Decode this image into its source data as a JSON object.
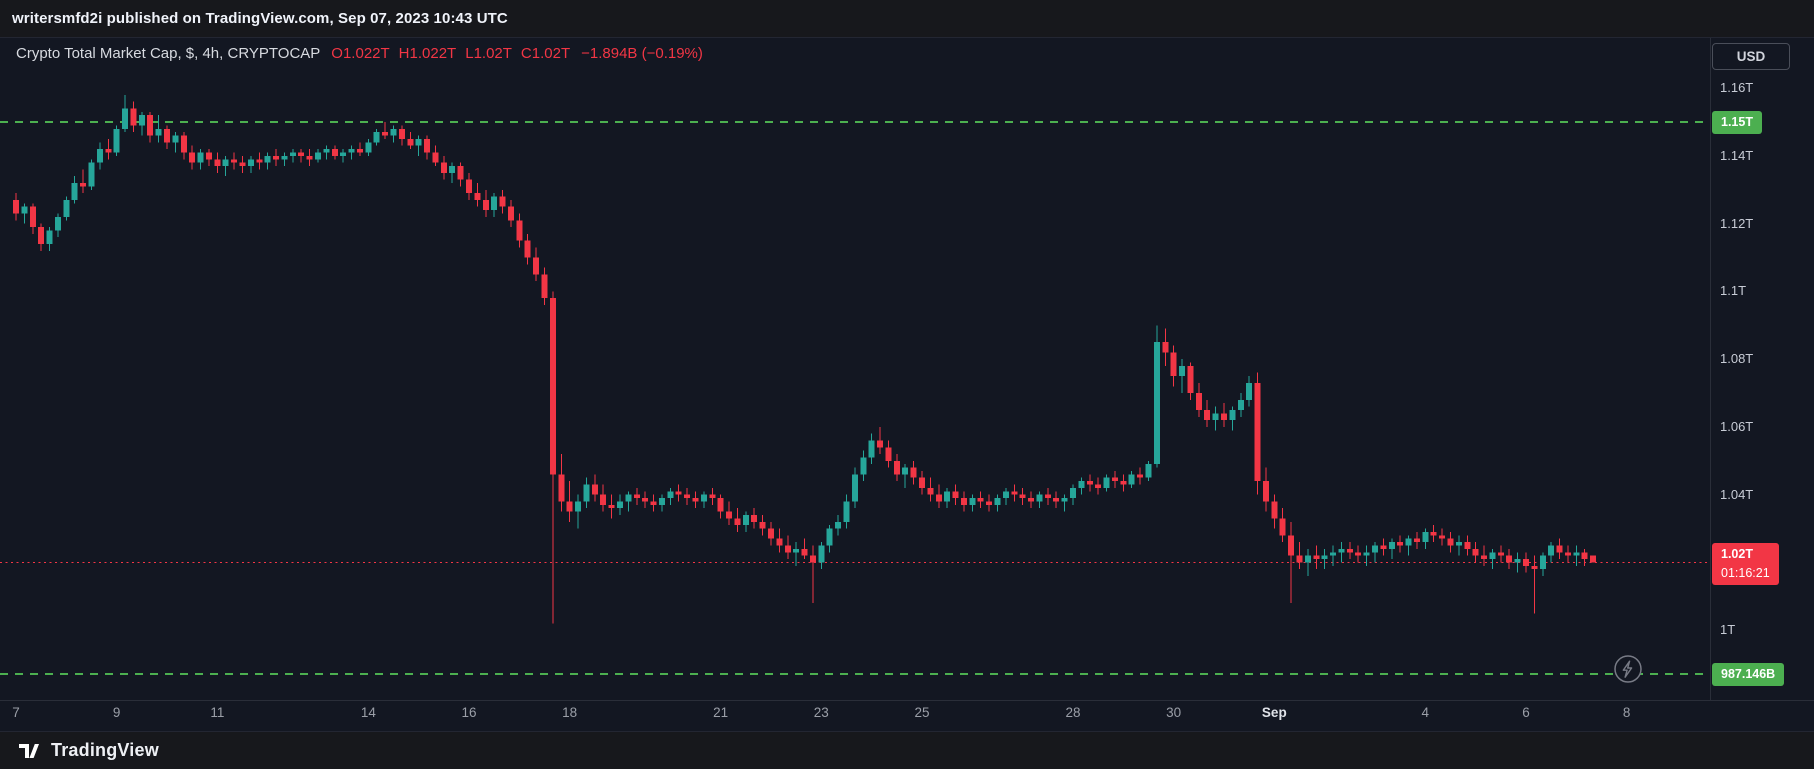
{
  "publish_bar": {
    "text": "writersmfd2i published on TradingView.com, Sep 07, 2023 10:43 UTC"
  },
  "legend": {
    "title": "Crypto Total Market Cap, $, 4h, CRYPTOCAP",
    "ohlc": [
      {
        "label": "O",
        "value": "1.022T"
      },
      {
        "label": "H",
        "value": "1.022T"
      },
      {
        "label": "L",
        "value": "1.02T"
      },
      {
        "label": "C",
        "value": "1.02T"
      }
    ],
    "change": "−1.894B (−0.19%)"
  },
  "price_scale": {
    "currency_button": "USD"
  },
  "footer": {
    "brand": "TradingView"
  },
  "colors": {
    "up": "#26a69a",
    "down": "#f23645",
    "level_green": "#4caf50",
    "last_price_red": "#f23645",
    "background": "#131722",
    "axis_text": "#c8ccd6"
  },
  "chart_data": {
    "type": "candlestick",
    "name": "Crypto Total Market Cap",
    "unit": "$",
    "exchange": "CRYPTOCAP",
    "interval": "4h",
    "currency": "USD",
    "start_time": "2023-08-07 00:00 UTC",
    "interval_hours": 4,
    "ylim_trillions": [
      0.9794,
      1.1745
    ],
    "y_ticks": [
      {
        "label": "1.16T",
        "price_trillions": 1.16
      },
      {
        "label": "1.14T",
        "price_trillions": 1.14
      },
      {
        "label": "1.12T",
        "price_trillions": 1.12
      },
      {
        "label": "1.1T",
        "price_trillions": 1.1
      },
      {
        "label": "1.08T",
        "price_trillions": 1.08
      },
      {
        "label": "1.06T",
        "price_trillions": 1.06
      },
      {
        "label": "1.04T",
        "price_trillions": 1.04
      },
      {
        "label": "1T",
        "price_trillions": 1.0
      }
    ],
    "x_ticks": [
      {
        "label": "7",
        "day_offset": 0
      },
      {
        "label": "9",
        "day_offset": 2
      },
      {
        "label": "11",
        "day_offset": 4
      },
      {
        "label": "14",
        "day_offset": 7
      },
      {
        "label": "16",
        "day_offset": 9
      },
      {
        "label": "18",
        "day_offset": 11
      },
      {
        "label": "21",
        "day_offset": 14
      },
      {
        "label": "23",
        "day_offset": 16
      },
      {
        "label": "25",
        "day_offset": 18
      },
      {
        "label": "28",
        "day_offset": 21
      },
      {
        "label": "30",
        "day_offset": 23
      },
      {
        "label": "Sep",
        "day_offset": 25,
        "major": true
      },
      {
        "label": "4",
        "day_offset": 28
      },
      {
        "label": "6",
        "day_offset": 30
      },
      {
        "label": "8",
        "day_offset": 32
      }
    ],
    "levels": [
      {
        "kind": "horizontal-line",
        "style": "dashed",
        "color": "#4caf50",
        "price_trillions": 1.15,
        "badge": "1.15T"
      },
      {
        "kind": "horizontal-line",
        "style": "dashed",
        "color": "#4caf50",
        "price_trillions": 0.987146,
        "badge": "987.146B"
      },
      {
        "kind": "last-price",
        "style": "dotted",
        "color": "#f23645",
        "price_trillions": 1.02,
        "badge": "1.02T",
        "countdown": "01:16:21"
      }
    ],
    "candles_ohlc_trillions": [
      [
        1.127,
        1.129,
        1.121,
        1.123
      ],
      [
        1.123,
        1.126,
        1.12,
        1.125
      ],
      [
        1.125,
        1.126,
        1.117,
        1.119
      ],
      [
        1.119,
        1.12,
        1.112,
        1.114
      ],
      [
        1.114,
        1.119,
        1.112,
        1.118
      ],
      [
        1.118,
        1.123,
        1.116,
        1.122
      ],
      [
        1.122,
        1.128,
        1.121,
        1.127
      ],
      [
        1.127,
        1.134,
        1.126,
        1.132
      ],
      [
        1.132,
        1.136,
        1.129,
        1.131
      ],
      [
        1.131,
        1.139,
        1.13,
        1.138
      ],
      [
        1.138,
        1.144,
        1.136,
        1.142
      ],
      [
        1.142,
        1.145,
        1.139,
        1.141
      ],
      [
        1.141,
        1.149,
        1.14,
        1.148
      ],
      [
        1.148,
        1.158,
        1.147,
        1.154
      ],
      [
        1.154,
        1.156,
        1.147,
        1.149
      ],
      [
        1.149,
        1.153,
        1.146,
        1.152
      ],
      [
        1.152,
        1.153,
        1.144,
        1.146
      ],
      [
        1.146,
        1.152,
        1.144,
        1.148
      ],
      [
        1.148,
        1.149,
        1.142,
        1.144
      ],
      [
        1.144,
        1.147,
        1.141,
        1.146
      ],
      [
        1.146,
        1.147,
        1.139,
        1.141
      ],
      [
        1.141,
        1.143,
        1.136,
        1.138
      ],
      [
        1.138,
        1.142,
        1.136,
        1.141
      ],
      [
        1.141,
        1.142,
        1.137,
        1.139
      ],
      [
        1.139,
        1.141,
        1.135,
        1.137
      ],
      [
        1.137,
        1.14,
        1.134,
        1.139
      ],
      [
        1.139,
        1.141,
        1.136,
        1.138
      ],
      [
        1.138,
        1.14,
        1.135,
        1.137
      ],
      [
        1.137,
        1.14,
        1.135,
        1.139
      ],
      [
        1.139,
        1.141,
        1.136,
        1.138
      ],
      [
        1.138,
        1.141,
        1.136,
        1.14
      ],
      [
        1.14,
        1.142,
        1.137,
        1.139
      ],
      [
        1.139,
        1.141,
        1.137,
        1.14
      ],
      [
        1.14,
        1.142,
        1.138,
        1.141
      ],
      [
        1.141,
        1.142,
        1.138,
        1.14
      ],
      [
        1.14,
        1.142,
        1.137,
        1.139
      ],
      [
        1.139,
        1.142,
        1.138,
        1.141
      ],
      [
        1.141,
        1.143,
        1.139,
        1.142
      ],
      [
        1.142,
        1.143,
        1.139,
        1.14
      ],
      [
        1.14,
        1.142,
        1.138,
        1.141
      ],
      [
        1.141,
        1.143,
        1.139,
        1.142
      ],
      [
        1.142,
        1.144,
        1.14,
        1.141
      ],
      [
        1.141,
        1.145,
        1.14,
        1.144
      ],
      [
        1.144,
        1.148,
        1.143,
        1.147
      ],
      [
        1.147,
        1.15,
        1.145,
        1.146
      ],
      [
        1.146,
        1.149,
        1.144,
        1.148
      ],
      [
        1.148,
        1.149,
        1.143,
        1.145
      ],
      [
        1.145,
        1.147,
        1.142,
        1.143
      ],
      [
        1.143,
        1.146,
        1.14,
        1.145
      ],
      [
        1.145,
        1.146,
        1.139,
        1.141
      ],
      [
        1.141,
        1.143,
        1.137,
        1.138
      ],
      [
        1.138,
        1.14,
        1.133,
        1.135
      ],
      [
        1.135,
        1.138,
        1.132,
        1.137
      ],
      [
        1.137,
        1.138,
        1.131,
        1.133
      ],
      [
        1.133,
        1.135,
        1.127,
        1.129
      ],
      [
        1.129,
        1.132,
        1.125,
        1.127
      ],
      [
        1.127,
        1.13,
        1.122,
        1.124
      ],
      [
        1.124,
        1.129,
        1.122,
        1.128
      ],
      [
        1.128,
        1.13,
        1.123,
        1.125
      ],
      [
        1.125,
        1.127,
        1.119,
        1.121
      ],
      [
        1.121,
        1.123,
        1.113,
        1.115
      ],
      [
        1.115,
        1.117,
        1.108,
        1.11
      ],
      [
        1.11,
        1.113,
        1.103,
        1.105
      ],
      [
        1.105,
        1.107,
        1.096,
        1.098
      ],
      [
        1.098,
        1.1,
        1.002,
        1.046
      ],
      [
        1.046,
        1.052,
        1.035,
        1.038
      ],
      [
        1.038,
        1.044,
        1.032,
        1.035
      ],
      [
        1.035,
        1.04,
        1.03,
        1.038
      ],
      [
        1.038,
        1.045,
        1.036,
        1.043
      ],
      [
        1.043,
        1.046,
        1.038,
        1.04
      ],
      [
        1.04,
        1.043,
        1.035,
        1.037
      ],
      [
        1.037,
        1.04,
        1.033,
        1.036
      ],
      [
        1.036,
        1.04,
        1.034,
        1.038
      ],
      [
        1.038,
        1.041,
        1.035,
        1.04
      ],
      [
        1.04,
        1.042,
        1.037,
        1.039
      ],
      [
        1.039,
        1.041,
        1.036,
        1.038
      ],
      [
        1.038,
        1.04,
        1.035,
        1.037
      ],
      [
        1.037,
        1.04,
        1.035,
        1.039
      ],
      [
        1.039,
        1.042,
        1.037,
        1.041
      ],
      [
        1.041,
        1.043,
        1.038,
        1.04
      ],
      [
        1.04,
        1.042,
        1.037,
        1.039
      ],
      [
        1.039,
        1.041,
        1.036,
        1.038
      ],
      [
        1.038,
        1.041,
        1.036,
        1.04
      ],
      [
        1.04,
        1.042,
        1.037,
        1.039
      ],
      [
        1.039,
        1.04,
        1.033,
        1.035
      ],
      [
        1.035,
        1.038,
        1.031,
        1.033
      ],
      [
        1.033,
        1.036,
        1.029,
        1.031
      ],
      [
        1.031,
        1.035,
        1.029,
        1.034
      ],
      [
        1.034,
        1.036,
        1.03,
        1.032
      ],
      [
        1.032,
        1.034,
        1.028,
        1.03
      ],
      [
        1.03,
        1.032,
        1.025,
        1.027
      ],
      [
        1.027,
        1.03,
        1.023,
        1.025
      ],
      [
        1.025,
        1.028,
        1.021,
        1.023
      ],
      [
        1.023,
        1.026,
        1.019,
        1.024
      ],
      [
        1.024,
        1.027,
        1.021,
        1.022
      ],
      [
        1.022,
        1.025,
        1.008,
        1.02
      ],
      [
        1.02,
        1.026,
        1.018,
        1.025
      ],
      [
        1.025,
        1.031,
        1.023,
        1.03
      ],
      [
        1.03,
        1.034,
        1.028,
        1.032
      ],
      [
        1.032,
        1.04,
        1.03,
        1.038
      ],
      [
        1.038,
        1.048,
        1.036,
        1.046
      ],
      [
        1.046,
        1.053,
        1.044,
        1.051
      ],
      [
        1.051,
        1.058,
        1.049,
        1.056
      ],
      [
        1.056,
        1.06,
        1.052,
        1.054
      ],
      [
        1.054,
        1.056,
        1.048,
        1.05
      ],
      [
        1.05,
        1.052,
        1.044,
        1.046
      ],
      [
        1.046,
        1.049,
        1.042,
        1.048
      ],
      [
        1.048,
        1.05,
        1.043,
        1.045
      ],
      [
        1.045,
        1.047,
        1.04,
        1.042
      ],
      [
        1.042,
        1.045,
        1.038,
        1.04
      ],
      [
        1.04,
        1.043,
        1.036,
        1.038
      ],
      [
        1.038,
        1.042,
        1.036,
        1.041
      ],
      [
        1.041,
        1.043,
        1.037,
        1.039
      ],
      [
        1.039,
        1.041,
        1.035,
        1.037
      ],
      [
        1.037,
        1.04,
        1.035,
        1.039
      ],
      [
        1.039,
        1.041,
        1.036,
        1.038
      ],
      [
        1.038,
        1.04,
        1.035,
        1.037
      ],
      [
        1.037,
        1.04,
        1.035,
        1.039
      ],
      [
        1.039,
        1.042,
        1.037,
        1.041
      ],
      [
        1.041,
        1.043,
        1.038,
        1.04
      ],
      [
        1.04,
        1.042,
        1.037,
        1.039
      ],
      [
        1.039,
        1.041,
        1.036,
        1.038
      ],
      [
        1.038,
        1.041,
        1.036,
        1.04
      ],
      [
        1.04,
        1.042,
        1.037,
        1.039
      ],
      [
        1.039,
        1.041,
        1.036,
        1.038
      ],
      [
        1.038,
        1.04,
        1.035,
        1.039
      ],
      [
        1.039,
        1.043,
        1.037,
        1.042
      ],
      [
        1.042,
        1.045,
        1.04,
        1.044
      ],
      [
        1.044,
        1.046,
        1.041,
        1.043
      ],
      [
        1.043,
        1.045,
        1.04,
        1.042
      ],
      [
        1.042,
        1.046,
        1.041,
        1.045
      ],
      [
        1.045,
        1.047,
        1.042,
        1.044
      ],
      [
        1.044,
        1.046,
        1.041,
        1.043
      ],
      [
        1.043,
        1.047,
        1.042,
        1.046
      ],
      [
        1.046,
        1.048,
        1.043,
        1.045
      ],
      [
        1.045,
        1.05,
        1.044,
        1.049
      ],
      [
        1.049,
        1.09,
        1.048,
        1.085
      ],
      [
        1.085,
        1.089,
        1.078,
        1.082
      ],
      [
        1.082,
        1.084,
        1.072,
        1.075
      ],
      [
        1.075,
        1.08,
        1.07,
        1.078
      ],
      [
        1.078,
        1.079,
        1.068,
        1.07
      ],
      [
        1.07,
        1.073,
        1.063,
        1.065
      ],
      [
        1.065,
        1.068,
        1.06,
        1.062
      ],
      [
        1.062,
        1.066,
        1.059,
        1.064
      ],
      [
        1.064,
        1.067,
        1.06,
        1.062
      ],
      [
        1.062,
        1.066,
        1.059,
        1.065
      ],
      [
        1.065,
        1.07,
        1.063,
        1.068
      ],
      [
        1.068,
        1.075,
        1.066,
        1.073
      ],
      [
        1.073,
        1.076,
        1.04,
        1.044
      ],
      [
        1.044,
        1.048,
        1.035,
        1.038
      ],
      [
        1.038,
        1.04,
        1.03,
        1.033
      ],
      [
        1.033,
        1.036,
        1.026,
        1.028
      ],
      [
        1.028,
        1.032,
        1.008,
        1.022
      ],
      [
        1.022,
        1.026,
        1.018,
        1.02
      ],
      [
        1.02,
        1.024,
        1.016,
        1.022
      ],
      [
        1.022,
        1.025,
        1.018,
        1.021
      ],
      [
        1.021,
        1.024,
        1.018,
        1.022
      ],
      [
        1.022,
        1.025,
        1.019,
        1.023
      ],
      [
        1.023,
        1.026,
        1.02,
        1.024
      ],
      [
        1.024,
        1.026,
        1.021,
        1.023
      ],
      [
        1.023,
        1.025,
        1.02,
        1.022
      ],
      [
        1.022,
        1.025,
        1.019,
        1.023
      ],
      [
        1.023,
        1.026,
        1.02,
        1.025
      ],
      [
        1.025,
        1.027,
        1.022,
        1.024
      ],
      [
        1.024,
        1.027,
        1.021,
        1.026
      ],
      [
        1.026,
        1.028,
        1.023,
        1.025
      ],
      [
        1.025,
        1.028,
        1.022,
        1.027
      ],
      [
        1.027,
        1.029,
        1.024,
        1.026
      ],
      [
        1.026,
        1.03,
        1.024,
        1.029
      ],
      [
        1.029,
        1.031,
        1.026,
        1.028
      ],
      [
        1.028,
        1.03,
        1.025,
        1.027
      ],
      [
        1.027,
        1.029,
        1.023,
        1.025
      ],
      [
        1.025,
        1.028,
        1.022,
        1.026
      ],
      [
        1.026,
        1.028,
        1.022,
        1.024
      ],
      [
        1.024,
        1.026,
        1.02,
        1.022
      ],
      [
        1.022,
        1.025,
        1.019,
        1.021
      ],
      [
        1.021,
        1.024,
        1.018,
        1.023
      ],
      [
        1.023,
        1.025,
        1.02,
        1.022
      ],
      [
        1.022,
        1.024,
        1.018,
        1.02
      ],
      [
        1.02,
        1.023,
        1.017,
        1.021
      ],
      [
        1.021,
        1.023,
        1.017,
        1.019
      ],
      [
        1.019,
        1.022,
        1.005,
        1.018
      ],
      [
        1.018,
        1.023,
        1.016,
        1.022
      ],
      [
        1.022,
        1.026,
        1.02,
        1.025
      ],
      [
        1.025,
        1.027,
        1.021,
        1.023
      ],
      [
        1.023,
        1.025,
        1.02,
        1.022
      ],
      [
        1.022,
        1.025,
        1.019,
        1.023
      ],
      [
        1.023,
        1.024,
        1.019,
        1.021
      ],
      [
        1.022,
        1.022,
        1.02,
        1.02
      ]
    ]
  }
}
